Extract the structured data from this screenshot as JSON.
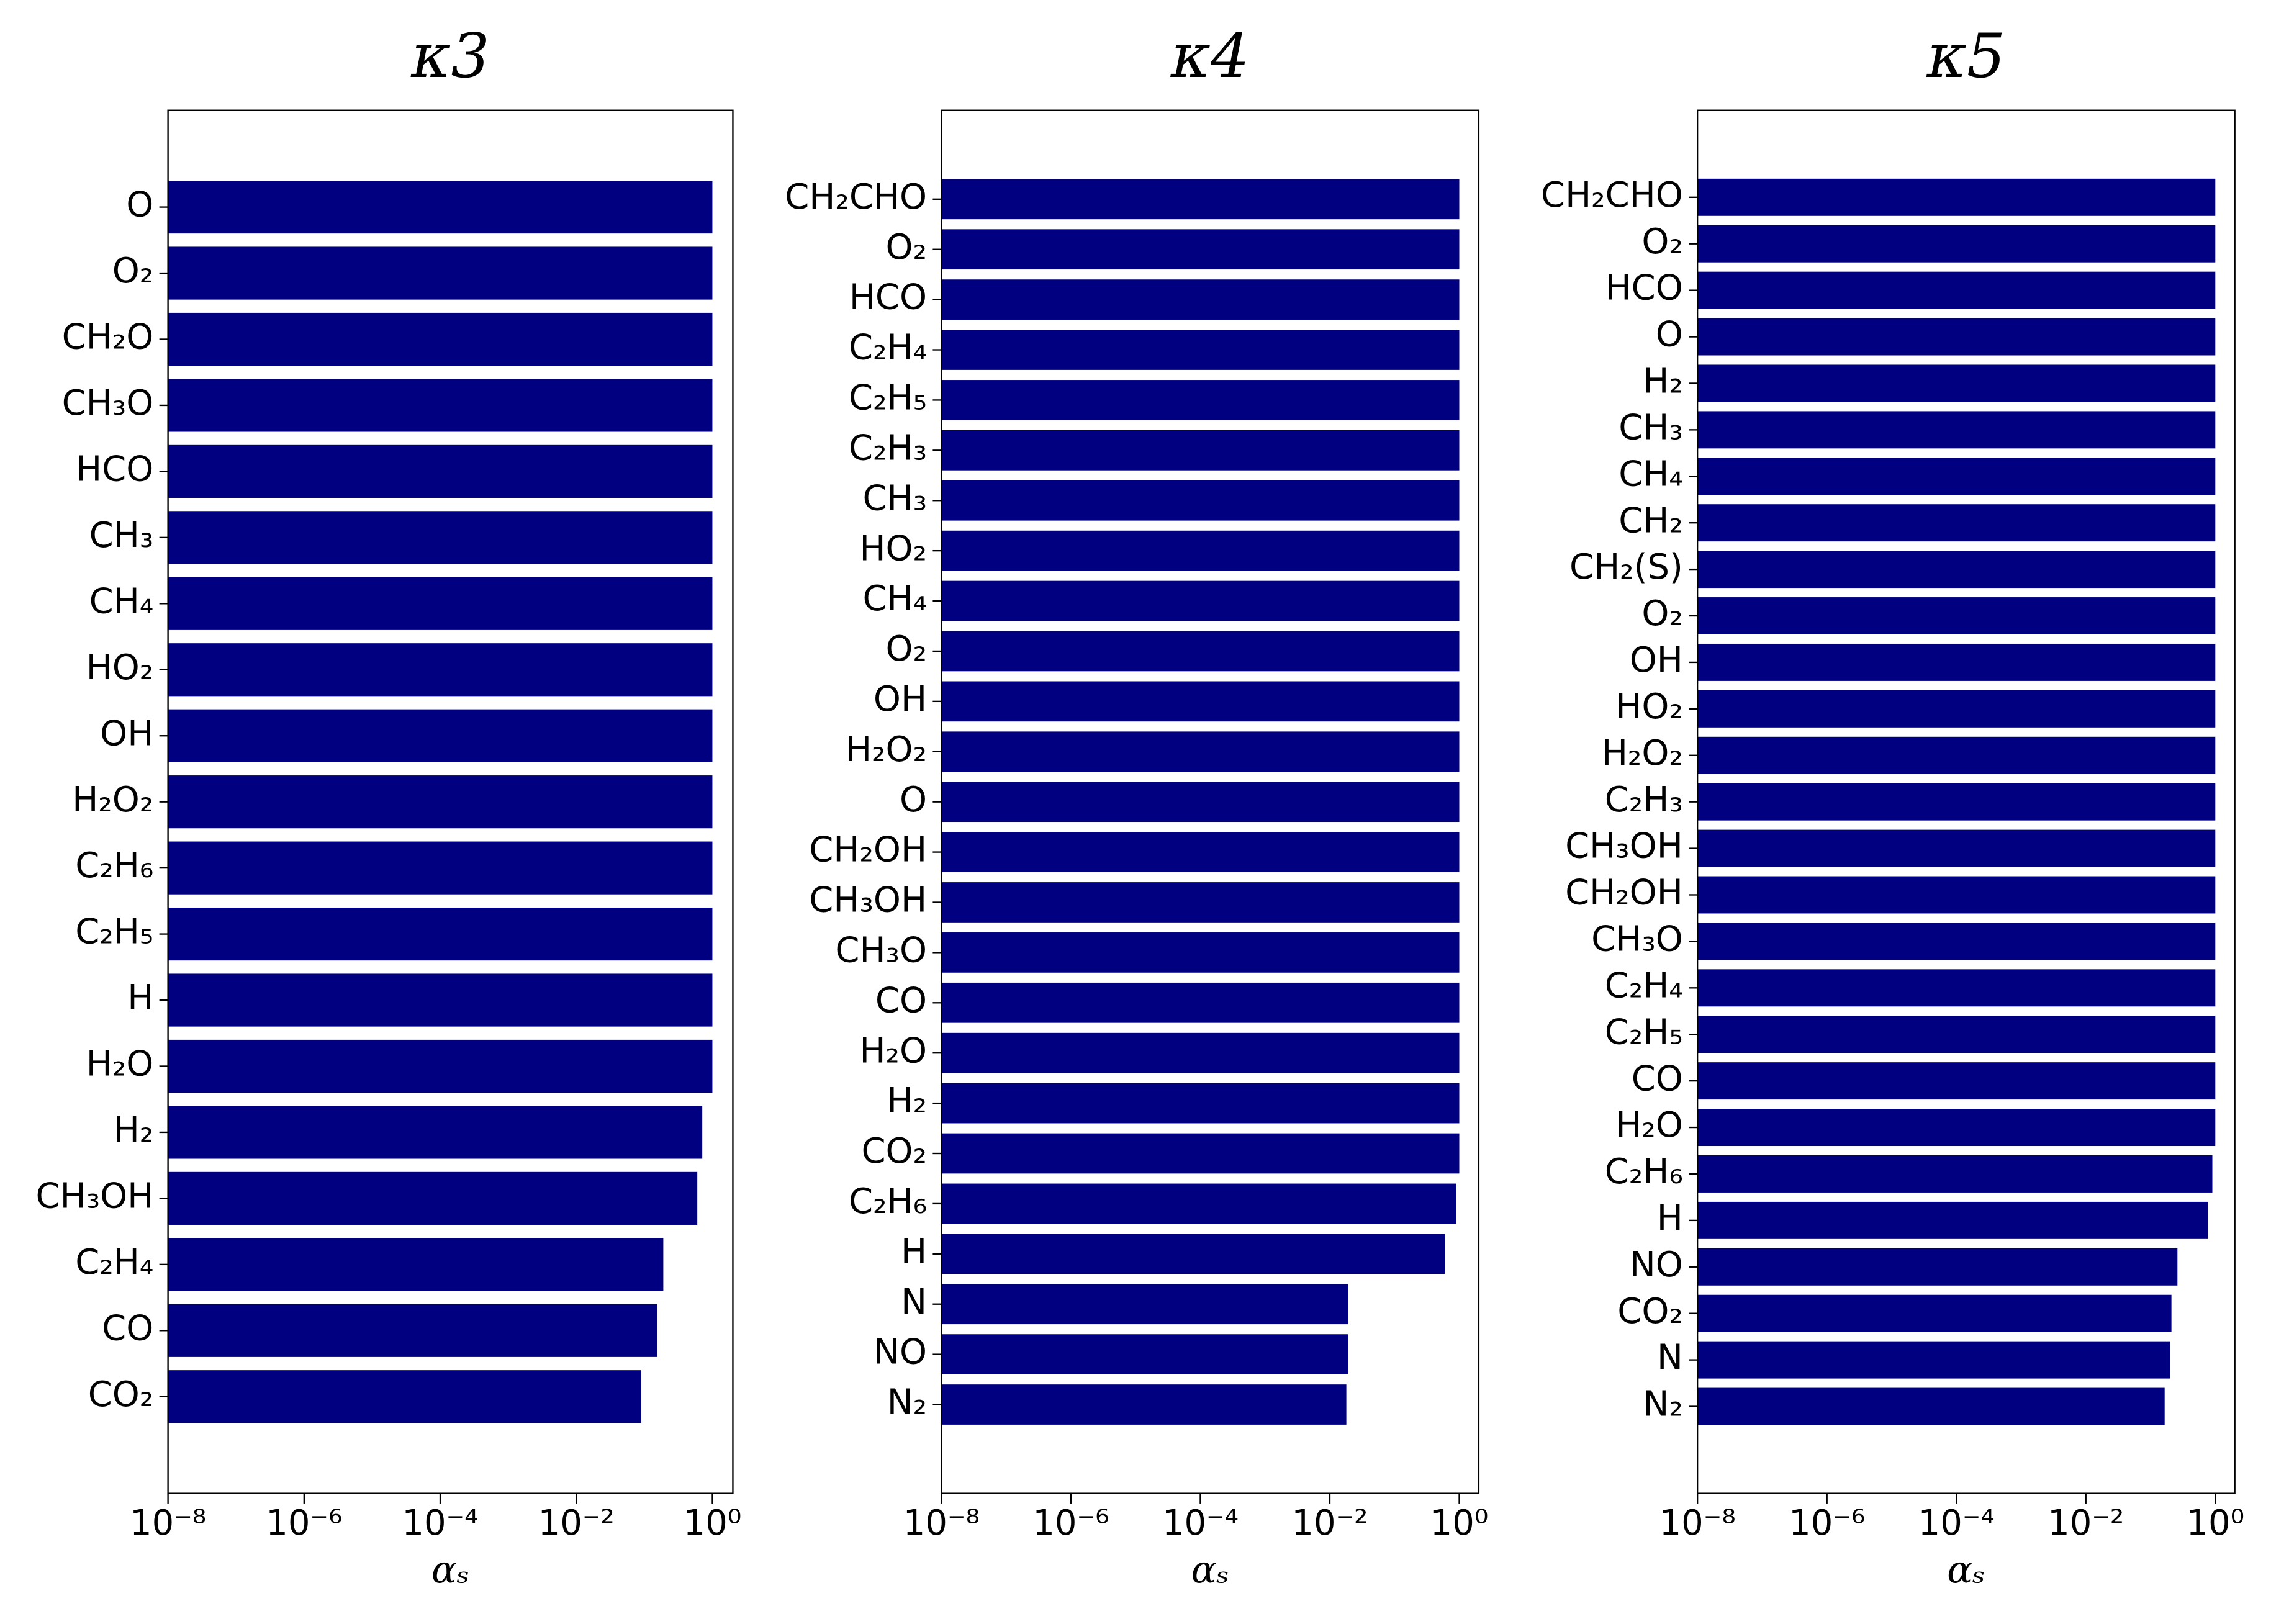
{
  "chart_data": [
    {
      "type": "bar",
      "orientation": "horizontal",
      "title": "κ3",
      "xlabel": "αₛ",
      "color": "#000080",
      "log_x": true,
      "categories": [
        "O",
        "O₂",
        "CH₂O",
        "CH₃O",
        "HCO",
        "CH₃",
        "CH₄",
        "HO₂",
        "OH",
        "H₂O₂",
        "C₂H₆",
        "C₂H₅",
        "H",
        "H₂O",
        "H₂",
        "CH₃OH",
        "C₂H₄",
        "CO",
        "CO₂"
      ],
      "values": [
        1,
        1,
        1,
        1,
        1,
        1,
        1,
        1,
        1,
        1,
        1,
        1,
        1,
        1,
        0.71,
        0.6,
        0.19,
        0.155,
        0.09
      ],
      "xlim": [
        1e-08,
        2
      ],
      "xticks": [
        {
          "value": 1e-08,
          "label": "10⁻⁸"
        },
        {
          "value": 1e-06,
          "label": "10⁻⁶"
        },
        {
          "value": 0.0001,
          "label": "10⁻⁴"
        },
        {
          "value": 0.01,
          "label": "10⁻²"
        },
        {
          "value": 1,
          "label": "10⁰"
        }
      ]
    },
    {
      "type": "bar",
      "orientation": "horizontal",
      "title": "κ4",
      "xlabel": "αₛ",
      "color": "#000080",
      "log_x": true,
      "categories": [
        "CH₂CHO",
        "O₂",
        "HCO",
        "C₂H₄",
        "C₂H₅",
        "C₂H₃",
        "CH₃",
        "HO₂",
        "CH₄",
        "O₂",
        "OH",
        "H₂O₂",
        "O",
        "CH₂OH",
        "CH₃OH",
        "CH₃O",
        "CO",
        "H₂O",
        "H₂",
        "CO₂",
        "C₂H₆",
        "H",
        "N",
        "NO",
        "N₂"
      ],
      "values": [
        1,
        1,
        1,
        1,
        1,
        1,
        1,
        1,
        1,
        1,
        1,
        1,
        1,
        1,
        1,
        1,
        1,
        1,
        1,
        1,
        0.9,
        0.6,
        0.019,
        0.019,
        0.018
      ],
      "xlim": [
        1e-08,
        2
      ],
      "xticks": [
        {
          "value": 1e-08,
          "label": "10⁻⁸"
        },
        {
          "value": 1e-06,
          "label": "10⁻⁶"
        },
        {
          "value": 0.0001,
          "label": "10⁻⁴"
        },
        {
          "value": 0.01,
          "label": "10⁻²"
        },
        {
          "value": 1,
          "label": "10⁰"
        }
      ]
    },
    {
      "type": "bar",
      "orientation": "horizontal",
      "title": "κ5",
      "xlabel": "αₛ",
      "color": "#000080",
      "log_x": true,
      "categories": [
        "CH₂CHO",
        "O₂",
        "HCO",
        "O",
        "H₂",
        "CH₃",
        "CH₄",
        "CH₂",
        "CH₂(S)",
        "O₂",
        "OH",
        "HO₂",
        "H₂O₂",
        "C₂H₃",
        "CH₃OH",
        "CH₂OH",
        "CH₃O",
        "C₂H₄",
        "C₂H₅",
        "CO",
        "H₂O",
        "C₂H₆",
        "H",
        "NO",
        "CO₂",
        "N",
        "N₂"
      ],
      "values": [
        1,
        1,
        1,
        1,
        1,
        1,
        1,
        1,
        1,
        1,
        1,
        1,
        1,
        1,
        1,
        1,
        1,
        1,
        1,
        1,
        1,
        0.9,
        0.77,
        0.26,
        0.21,
        0.2,
        0.165
      ],
      "xlim": [
        1e-08,
        2
      ],
      "xticks": [
        {
          "value": 1e-08,
          "label": "10⁻⁸"
        },
        {
          "value": 1e-06,
          "label": "10⁻⁶"
        },
        {
          "value": 0.0001,
          "label": "10⁻⁴"
        },
        {
          "value": 0.01,
          "label": "10⁻²"
        },
        {
          "value": 1,
          "label": "10⁰"
        }
      ]
    }
  ]
}
